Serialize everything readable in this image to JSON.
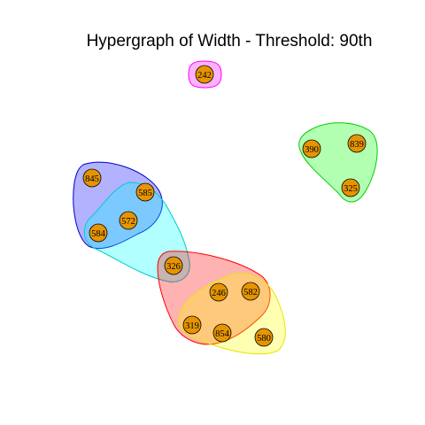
{
  "title": "Hypergraph of Width - Threshold: 90th",
  "nodes": [
    {
      "id": "n242",
      "label": "242"
    },
    {
      "id": "n390",
      "label": "390"
    },
    {
      "id": "n839",
      "label": "839"
    },
    {
      "id": "n325",
      "label": "325"
    },
    {
      "id": "n845",
      "label": "845"
    },
    {
      "id": "n585",
      "label": "585"
    },
    {
      "id": "n572",
      "label": "572"
    },
    {
      "id": "n584",
      "label": "584"
    },
    {
      "id": "n326",
      "label": "326"
    },
    {
      "id": "n246",
      "label": "246"
    },
    {
      "id": "n582",
      "label": "582"
    },
    {
      "id": "n319",
      "label": "319"
    },
    {
      "id": "n854",
      "label": "854"
    },
    {
      "id": "n580",
      "label": "580"
    }
  ],
  "hyperedges": [
    {
      "id": "e-magenta",
      "members": [
        "242"
      ],
      "fill": "#ff00ff",
      "stroke": "#ff00ff"
    },
    {
      "id": "e-green",
      "members": [
        "390",
        "839",
        "325"
      ],
      "fill": "#00ff00",
      "stroke": "#00cc00"
    },
    {
      "id": "e-blue",
      "members": [
        "845",
        "585",
        "572",
        "584"
      ],
      "fill": "#0000ff",
      "stroke": "#0000cc"
    },
    {
      "id": "e-cyan",
      "members": [
        "585",
        "572",
        "584",
        "326"
      ],
      "fill": "#00ffff",
      "stroke": "#00cccc"
    },
    {
      "id": "e-red",
      "members": [
        "326",
        "246",
        "582",
        "319",
        "854"
      ],
      "fill": "#ff0000",
      "stroke": "#ff0000"
    },
    {
      "id": "e-yellow",
      "members": [
        "246",
        "582",
        "319",
        "854",
        "580"
      ],
      "fill": "#ffff00",
      "stroke": "#e6e600"
    }
  ],
  "node_color": "#e69500"
}
